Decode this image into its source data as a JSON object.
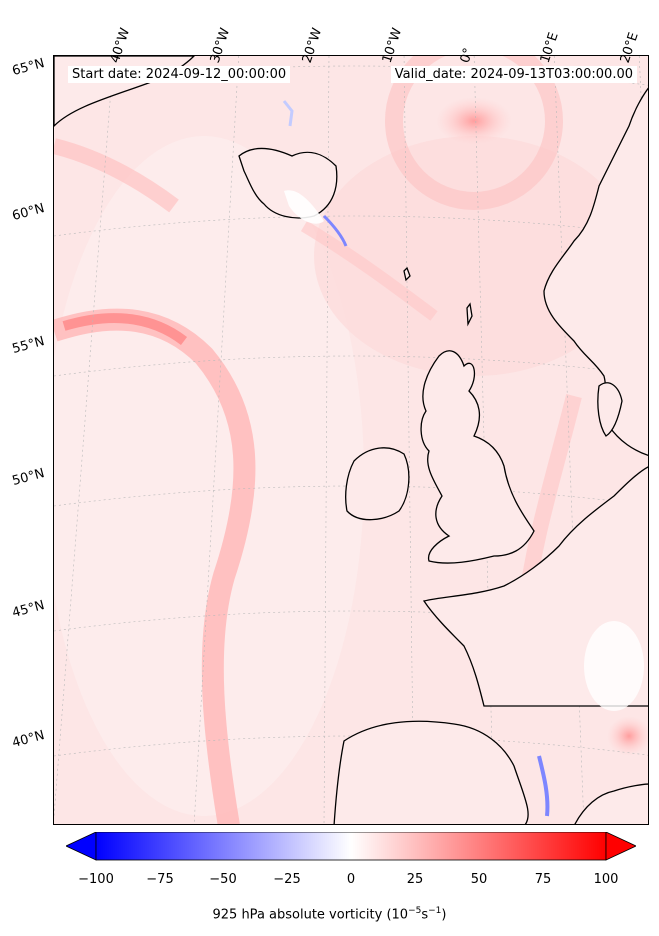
{
  "info": {
    "start_date": "Start date: 2024-09-12_00:00:00",
    "valid_date": "Valid_date: 2024-09-13T03:00:00.00"
  },
  "longitude_labels": [
    "40°W",
    "30°W",
    "20°W",
    "10°W",
    "0°",
    "10°E",
    "20°E"
  ],
  "latitude_labels": [
    "65°N",
    "60°N",
    "55°N",
    "50°N",
    "45°N",
    "40°N"
  ],
  "colorbar": {
    "ticks": [
      "−100",
      "−75",
      "−50",
      "−25",
      "0",
      "25",
      "50",
      "75",
      "100"
    ],
    "min": -100,
    "max": 100,
    "title": "925 hPa absolute vorticity (10",
    "title_exp1": "−5",
    "title_mid": "s",
    "title_exp2": "−1",
    "title_end": ")",
    "negative_color": "#0000ff",
    "positive_color": "#ff0000",
    "extend": "both"
  },
  "colors": {
    "land_coast": "#000000",
    "ocean_field": "#fde9e9"
  }
}
